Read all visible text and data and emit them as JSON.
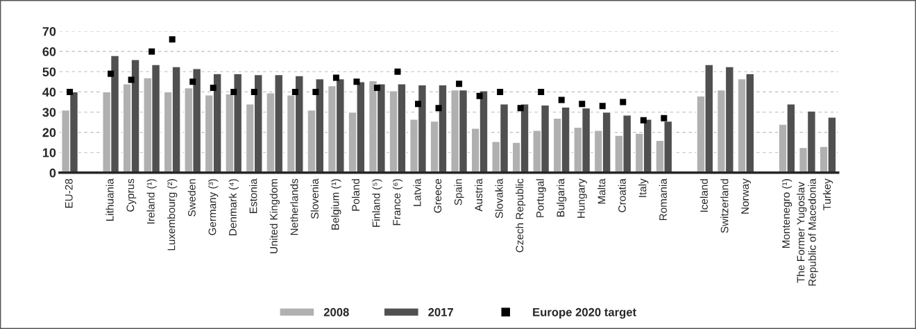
{
  "chart_data": {
    "type": "bar",
    "categories": [
      "EU-28",
      null,
      "Lithuania",
      "Cyprus",
      "Ireland (¹)",
      "Luxembourg (²)",
      "Sweden",
      "Germany (³)",
      "Denmark (⁴)",
      "Estonia",
      "United Kingdom",
      "Netherlands",
      "Slovenia",
      "Belgium (¹)",
      "Poland",
      "Finland (⁵)",
      "France (⁶)",
      "Latvia",
      "Greece",
      "Spain",
      "Austria",
      "Slovakia",
      "Czech Republic",
      "Portugal",
      "Bulgaria",
      "Hungary",
      "Malta",
      "Croatia",
      "Italy",
      "Romania",
      null,
      "Iceland",
      "Switzerland",
      "Norway",
      null,
      "Montenegro (¹)",
      "The Former Yugoslav\nRepublic of Macedonia",
      "Turkey"
    ],
    "series": [
      {
        "name": "2008",
        "color": "#b0b0b0",
        "values": [
          31,
          null,
          40,
          44,
          47,
          40,
          42,
          38.5,
          39,
          34,
          39.5,
          38.5,
          31,
          43,
          30,
          45.5,
          40.5,
          26.5,
          25.5,
          41,
          22,
          15.5,
          15,
          21,
          27,
          22.5,
          21,
          18.5,
          19.5,
          16,
          null,
          38,
          41,
          46.5,
          null,
          24,
          12.5,
          13
        ]
      },
      {
        "name": "2017",
        "color": "#505050",
        "values": [
          40,
          null,
          58,
          56,
          53.5,
          52.5,
          51.5,
          49,
          49,
          48.5,
          48.5,
          48,
          46.5,
          46.5,
          45,
          44,
          44,
          43.5,
          43.5,
          41,
          40.5,
          34,
          34,
          33.5,
          32.5,
          32,
          30,
          28.5,
          26.5,
          25.5,
          null,
          53.5,
          52.5,
          49,
          null,
          34,
          30.5,
          27.5
        ]
      },
      {
        "name": "Europe 2020 target",
        "type": "scatter",
        "marker": "square",
        "color": "#000000",
        "values": [
          40,
          null,
          49,
          46,
          60,
          66,
          45,
          42,
          40,
          40,
          null,
          40,
          40,
          47,
          45,
          42,
          50,
          34,
          32,
          44,
          38,
          40,
          32,
          40,
          36,
          34,
          33,
          35,
          26,
          27,
          null,
          null,
          null,
          null,
          null,
          null,
          null,
          null
        ]
      }
    ],
    "ylim": [
      0,
      70
    ],
    "yticks": [
      0,
      10,
      20,
      30,
      40,
      50,
      60,
      70
    ],
    "grid": "y",
    "legend": "bottom"
  }
}
